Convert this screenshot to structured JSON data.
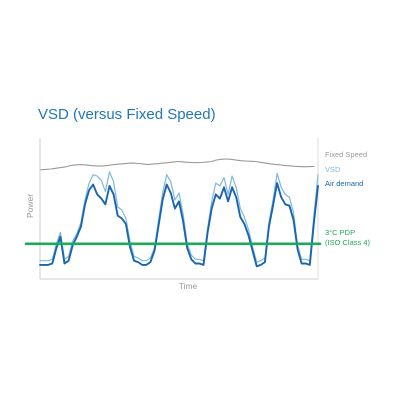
{
  "chart_data": {
    "type": "line",
    "title": "VSD (versus Fixed Speed)",
    "xlabel": "Time",
    "ylabel": "Power",
    "grid": false,
    "series": [
      {
        "name": "Fixed Speed",
        "color": "#999999",
        "values": [
          77.5,
          77.7,
          78,
          78.5,
          79,
          79.5,
          80.4,
          80.9,
          81.1,
          81,
          80.6,
          80.3,
          80.1,
          80.3,
          80.7,
          81.1,
          81.5,
          81.8,
          82.1,
          82.2,
          81.9,
          81.5,
          81.3,
          81.5,
          81.8,
          82.2,
          82.5,
          82.9,
          83.3,
          83.1,
          82.8,
          82.6,
          82.5,
          82.6,
          82.9,
          83.3,
          84.4,
          84.9,
          85.1,
          84.9,
          84.3,
          83.9,
          83.7,
          83.5,
          83.3,
          82.8,
          82.2,
          81.7,
          81.3,
          81,
          80.6,
          80.3,
          79.9,
          79.7,
          79.6,
          79.7,
          79.8
        ]
      },
      {
        "name": "VSD",
        "color": "#7fb8dd",
        "values": [
          13,
          13,
          13,
          14,
          25,
          33,
          14,
          16,
          27,
          32,
          40,
          56,
          68,
          74,
          73,
          70,
          62,
          76,
          69,
          51,
          49,
          43,
          27,
          16,
          15,
          13,
          13,
          15,
          22,
          42,
          61,
          74,
          69,
          56,
          61,
          46,
          25,
          17,
          14,
          14,
          13,
          36,
          55,
          68,
          66,
          72,
          60,
          73,
          65,
          50,
          44,
          35,
          23,
          12,
          13,
          15,
          40,
          56,
          75,
          65,
          60,
          58,
          47,
          24,
          14,
          14,
          13,
          45,
          74
        ]
      },
      {
        "name": "Air demand",
        "color": "#1a65b0",
        "values": [
          10,
          10,
          10,
          11,
          22,
          30,
          11,
          13,
          24,
          30,
          37,
          53,
          63,
          67,
          60,
          57,
          53,
          66,
          60,
          45,
          43,
          39,
          23,
          13,
          12,
          10,
          10,
          12,
          20,
          38,
          56,
          67,
          61,
          50,
          55,
          41,
          22,
          14,
          11,
          11,
          10,
          33,
          50,
          60,
          57,
          65,
          55,
          65,
          58,
          44,
          39,
          31,
          20,
          9,
          10,
          12,
          37,
          52,
          68,
          58,
          53,
          52,
          42,
          21,
          11,
          11,
          10,
          40,
          66
        ]
      },
      {
        "name": "3°C PDP (ISO Class 4)",
        "legend_lines": [
          "3°C PDP",
          "(ISO Class 4)"
        ],
        "color": "#1aab5a",
        "values": [
          25,
          25
        ]
      }
    ],
    "ylim": [
      0,
      100
    ]
  }
}
